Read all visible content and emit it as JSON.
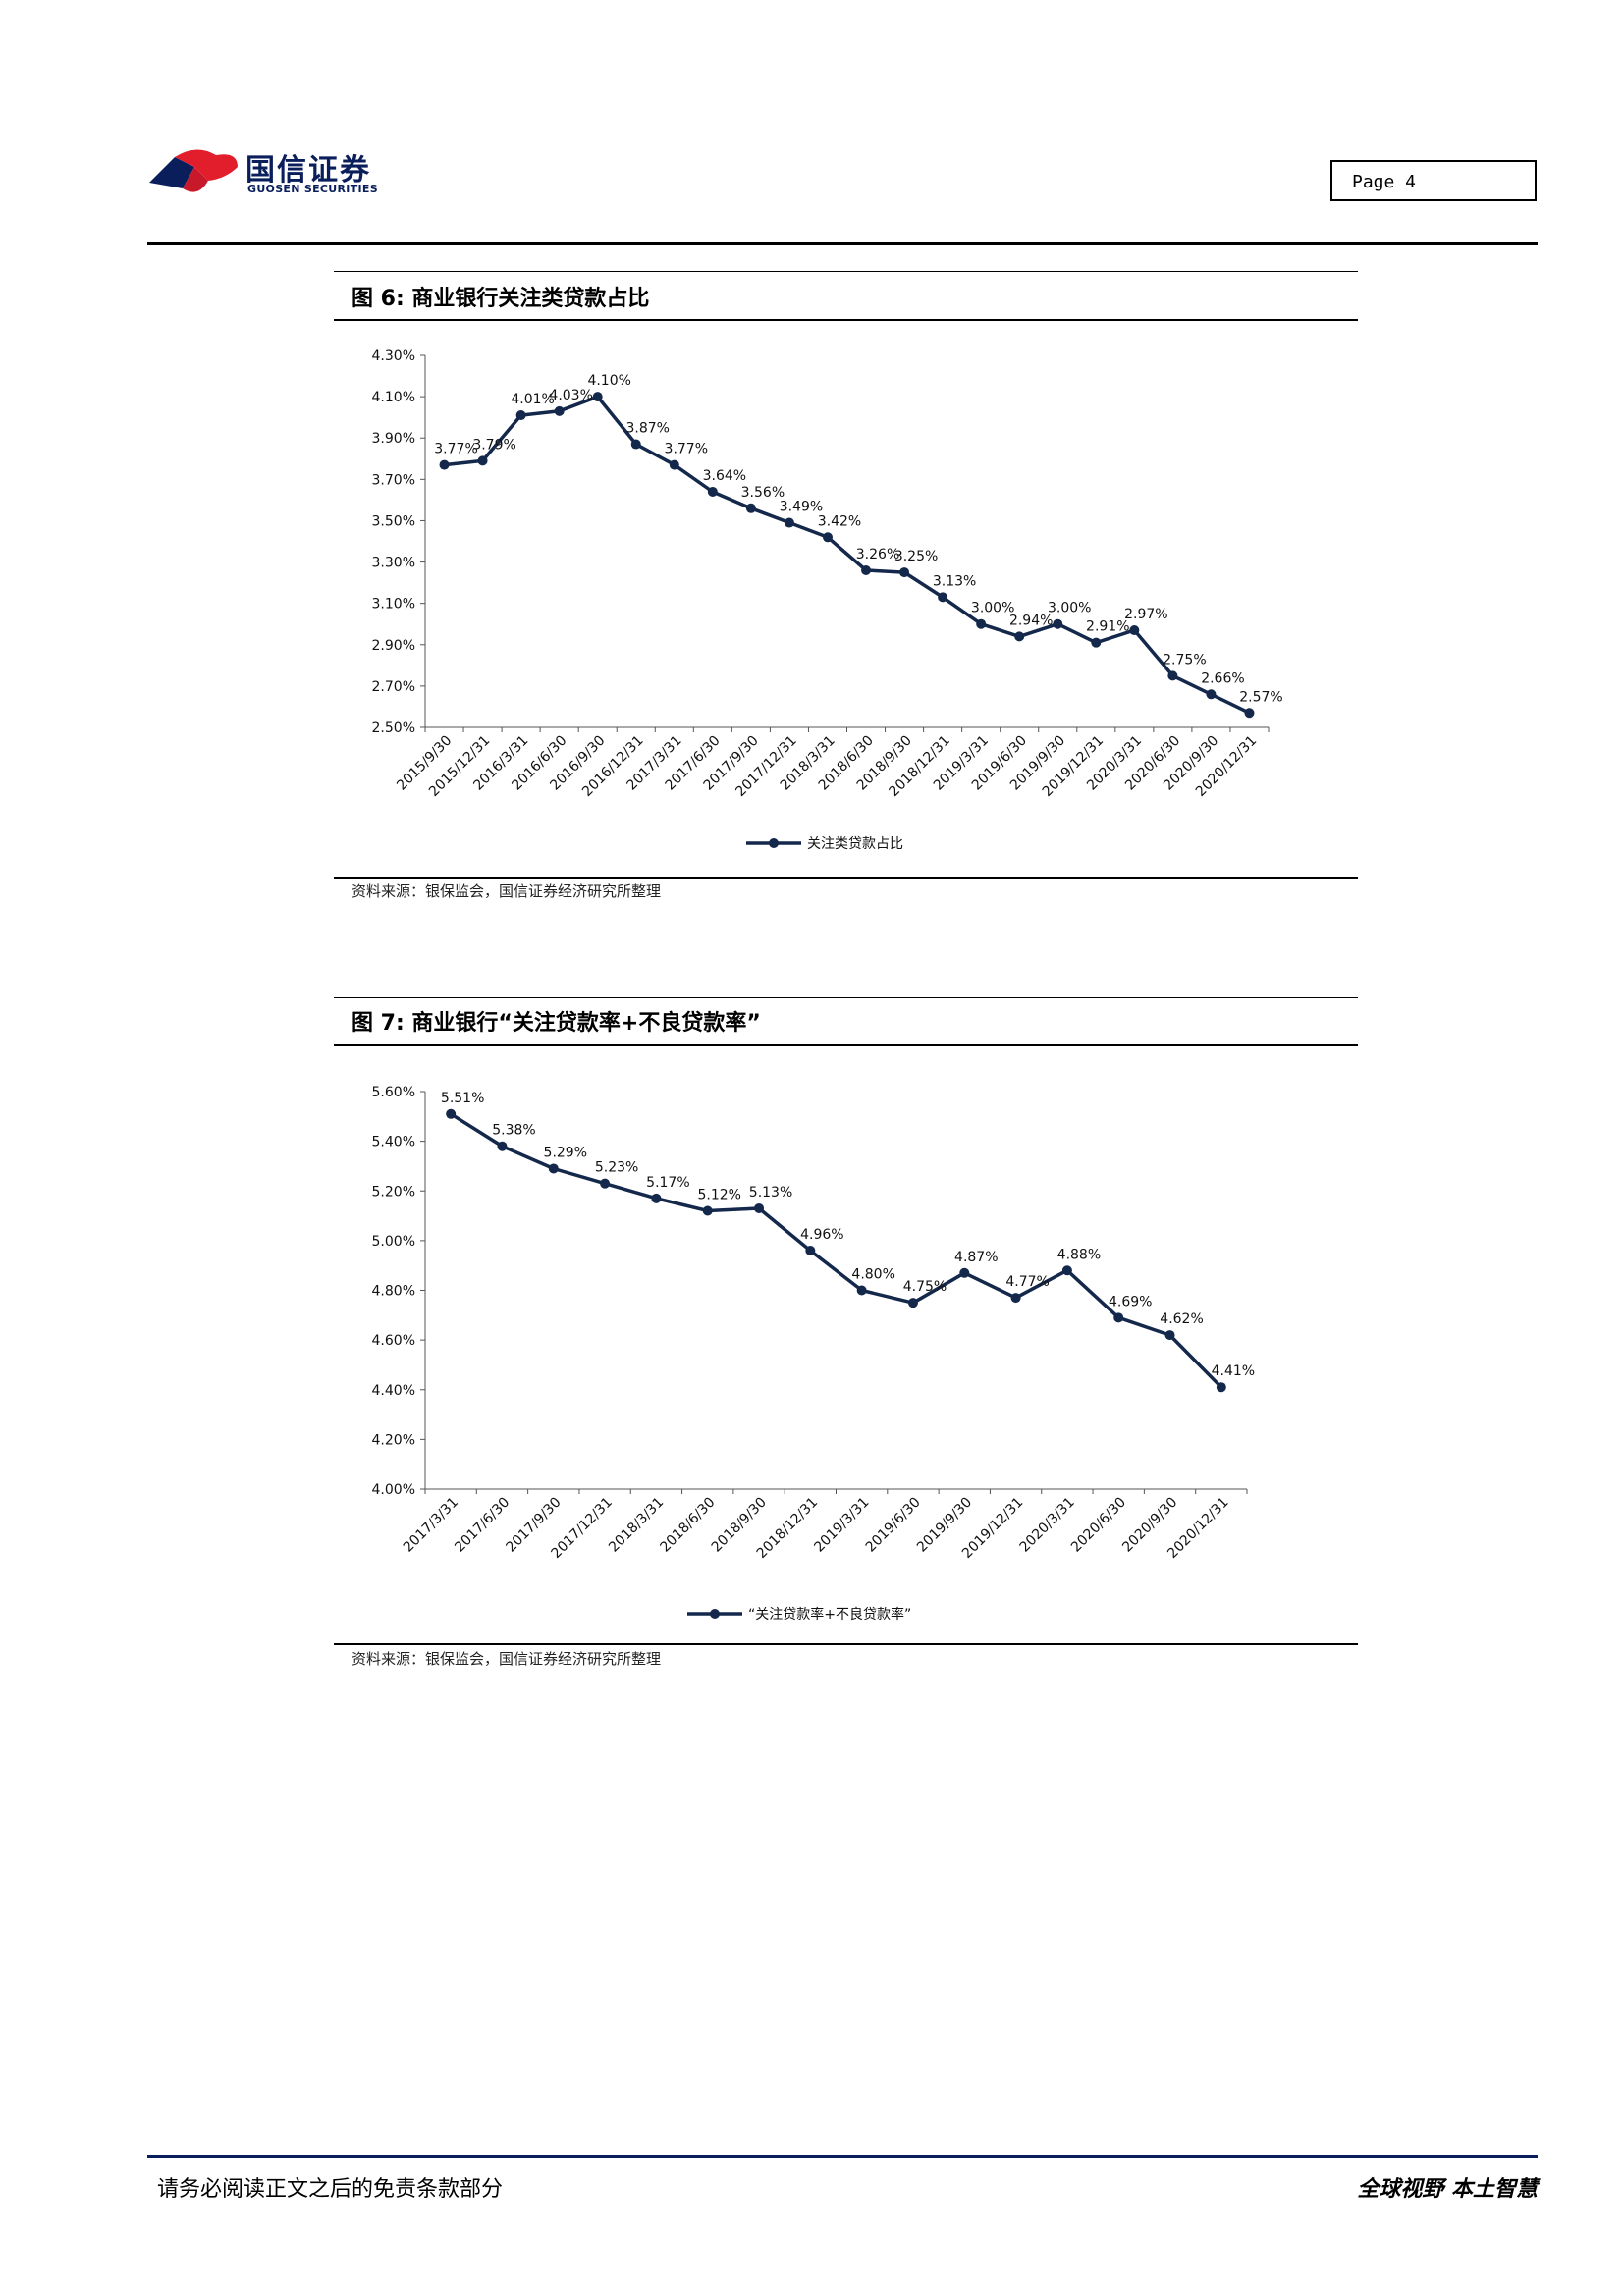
{
  "header": {
    "logo_cn": "国信证券",
    "logo_en": "GUOSEN SECURITIES",
    "page_label": "Page  4"
  },
  "figure6": {
    "title": "图 6:  商业银行关注类贷款占比",
    "source": "资料来源：银保监会，国信证券经济研究所整理"
  },
  "figure7": {
    "title": "图 7:  商业银行“关注贷款率+不良贷款率”",
    "source": "资料来源：银保监会，国信证券经济研究所整理"
  },
  "footer": {
    "disclaimer": "请务必阅读正文之后的免责条款部分",
    "slogan": "全球视野  本土智慧"
  },
  "colors": {
    "line": "#14284b",
    "brand": "#0a1e5c"
  },
  "chart_data": [
    {
      "type": "line",
      "categories": [
        "2015/9/30",
        "2015/12/31",
        "2016/3/31",
        "2016/6/30",
        "2016/9/30",
        "2016/12/31",
        "2017/3/31",
        "2017/6/30",
        "2017/9/30",
        "2017/12/31",
        "2018/3/31",
        "2018/6/30",
        "2018/9/30",
        "2018/12/31",
        "2019/3/31",
        "2019/6/30",
        "2019/9/30",
        "2019/12/31",
        "2020/3/31",
        "2020/6/30",
        "2020/9/30",
        "2020/12/31"
      ],
      "series": [
        {
          "name": "关注类贷款占比",
          "values": [
            3.77,
            3.79,
            4.01,
            4.03,
            4.1,
            3.87,
            3.77,
            3.64,
            3.56,
            3.49,
            3.42,
            3.26,
            3.25,
            3.13,
            3.0,
            2.94,
            3.0,
            2.91,
            2.97,
            2.75,
            2.66,
            2.57
          ]
        }
      ],
      "data_labels": [
        "3.77%",
        "3.79%",
        "4.01%",
        "4.03%",
        "4.10%",
        "3.87%",
        "3.77%",
        "3.64%",
        "3.56%",
        "3.49%",
        "3.42%",
        "3.26%",
        "3.25%",
        "3.13%",
        "3.00%",
        "2.94%",
        "3.00%",
        "2.91%",
        "2.97%",
        "2.75%",
        "2.66%",
        "2.57%"
      ],
      "yticks": [
        "4.30%",
        "4.10%",
        "3.90%",
        "3.70%",
        "3.50%",
        "3.30%",
        "3.10%",
        "2.90%",
        "2.70%",
        "2.50%"
      ],
      "ylim": [
        2.5,
        4.3
      ],
      "legend": "bottom",
      "grid": false
    },
    {
      "type": "line",
      "categories": [
        "2017/3/31",
        "2017/6/30",
        "2017/9/30",
        "2017/12/31",
        "2018/3/31",
        "2018/6/30",
        "2018/9/30",
        "2018/12/31",
        "2019/3/31",
        "2019/6/30",
        "2019/9/30",
        "2019/12/31",
        "2020/3/31",
        "2020/6/30",
        "2020/9/30",
        "2020/12/31"
      ],
      "series": [
        {
          "name": "“关注贷款率+不良贷款率”",
          "values": [
            5.51,
            5.38,
            5.29,
            5.23,
            5.17,
            5.12,
            5.13,
            4.96,
            4.8,
            4.75,
            4.87,
            4.77,
            4.88,
            4.69,
            4.62,
            4.41
          ]
        }
      ],
      "data_labels": [
        "5.51%",
        "5.38%",
        "5.29%",
        "5.23%",
        "5.17%",
        "5.12%",
        "5.13%",
        "4.96%",
        "4.80%",
        "4.75%",
        "4.87%",
        "4.77%",
        "4.88%",
        "4.69%",
        "4.62%",
        "4.41%"
      ],
      "yticks": [
        "5.60%",
        "5.40%",
        "5.20%",
        "5.00%",
        "4.80%",
        "4.60%",
        "4.40%",
        "4.20%",
        "4.00%"
      ],
      "ylim": [
        4.0,
        5.6
      ],
      "legend": "bottom",
      "grid": false
    }
  ]
}
